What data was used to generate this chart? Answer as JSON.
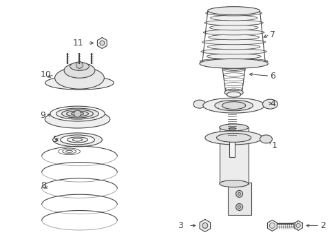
{
  "background_color": "#ffffff",
  "line_color": "#444444",
  "figsize": [
    4.89,
    3.6
  ],
  "dpi": 100,
  "font_size": 9
}
